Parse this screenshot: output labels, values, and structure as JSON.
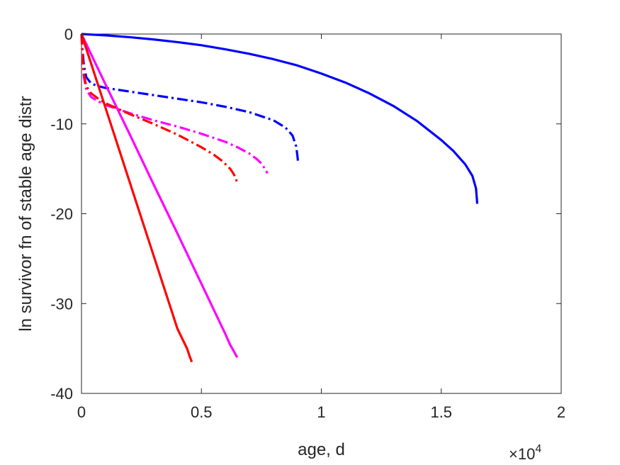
{
  "chart_data": {
    "type": "line",
    "title": "",
    "xlabel": "age, d",
    "ylabel": "ln survivor fn of stable age distr",
    "x_multiplier_label": {
      "base": "×10",
      "exponent": "4"
    },
    "xlim": [
      0,
      20000
    ],
    "ylim": [
      -40,
      0
    ],
    "x_tick_values": [
      0,
      5000,
      10000,
      15000,
      20000
    ],
    "x_tick_labels": [
      "0",
      "0.5",
      "1",
      "1.5",
      "2"
    ],
    "y_tick_values": [
      0,
      -10,
      -20,
      -30,
      -40
    ],
    "y_tick_labels": [
      "0",
      "-10",
      "-20",
      "-30",
      "-40"
    ],
    "grid": false,
    "legend": "none",
    "series": [
      {
        "color": "#0000ff",
        "style": "solid",
        "x": [
          0,
          1000,
          2000,
          3000,
          4000,
          5000,
          6000,
          7000,
          8000,
          9000,
          10000,
          11000,
          12000,
          13000,
          14000,
          15000,
          15500,
          16000,
          16300,
          16450,
          16500
        ],
        "y": [
          0,
          -0.15,
          -0.35,
          -0.6,
          -0.9,
          -1.25,
          -1.7,
          -2.2,
          -2.8,
          -3.5,
          -4.4,
          -5.4,
          -6.6,
          -8.0,
          -9.7,
          -11.8,
          -13.0,
          -14.5,
          -15.8,
          -17.2,
          -18.9
        ]
      },
      {
        "color": "#0000ff",
        "style": "dashdot",
        "x": [
          0,
          50,
          100,
          200,
          400,
          700,
          1000,
          2000,
          3000,
          4000,
          5000,
          6000,
          7000,
          8000,
          8500,
          8800,
          8950,
          9000,
          9030
        ],
        "y": [
          0,
          -2.0,
          -3.5,
          -4.8,
          -5.5,
          -5.8,
          -6.0,
          -6.4,
          -6.8,
          -7.2,
          -7.6,
          -8.1,
          -8.7,
          -9.6,
          -10.4,
          -11.3,
          -12.5,
          -13.5,
          -14.3
        ]
      },
      {
        "color": "#ff00ff",
        "style": "solid",
        "x": [
          0,
          1000,
          2000,
          3000,
          4000,
          5000,
          5500,
          6000,
          6200,
          6350,
          6450,
          6500
        ],
        "y": [
          0,
          -5.6,
          -11.1,
          -16.7,
          -22.2,
          -27.8,
          -30.6,
          -33.4,
          -34.6,
          -35.3,
          -35.8,
          -36.0
        ]
      },
      {
        "color": "#ff00ff",
        "style": "dashdot",
        "x": [
          0,
          50,
          100,
          200,
          400,
          700,
          1000,
          2000,
          3000,
          4000,
          5000,
          6000,
          6500,
          7000,
          7300,
          7500,
          7650,
          7750
        ],
        "y": [
          0,
          -3.0,
          -4.8,
          -6.2,
          -7.0,
          -7.5,
          -7.9,
          -8.8,
          -9.6,
          -10.3,
          -11.1,
          -12.0,
          -12.6,
          -13.3,
          -13.9,
          -14.4,
          -15.0,
          -15.5
        ]
      },
      {
        "color": "#ff0000",
        "style": "solid",
        "x": [
          0,
          500,
          1000,
          1500,
          2000,
          2500,
          3000,
          3500,
          4000,
          4400,
          4500,
          4600
        ],
        "y": [
          0,
          -4.1,
          -8.2,
          -12.3,
          -16.4,
          -20.5,
          -24.6,
          -28.7,
          -32.8,
          -35.0,
          -35.8,
          -36.5
        ]
      },
      {
        "color": "#ff0000",
        "style": "dashdot",
        "x": [
          0,
          50,
          100,
          200,
          400,
          700,
          1000,
          2000,
          3000,
          4000,
          5000,
          5500,
          5900,
          6200,
          6350,
          6450,
          6500
        ],
        "y": [
          0,
          -2.8,
          -4.5,
          -5.8,
          -6.6,
          -7.2,
          -7.7,
          -8.9,
          -10.0,
          -11.2,
          -12.6,
          -13.4,
          -14.2,
          -15.0,
          -15.6,
          -16.2,
          -16.7
        ]
      }
    ]
  }
}
